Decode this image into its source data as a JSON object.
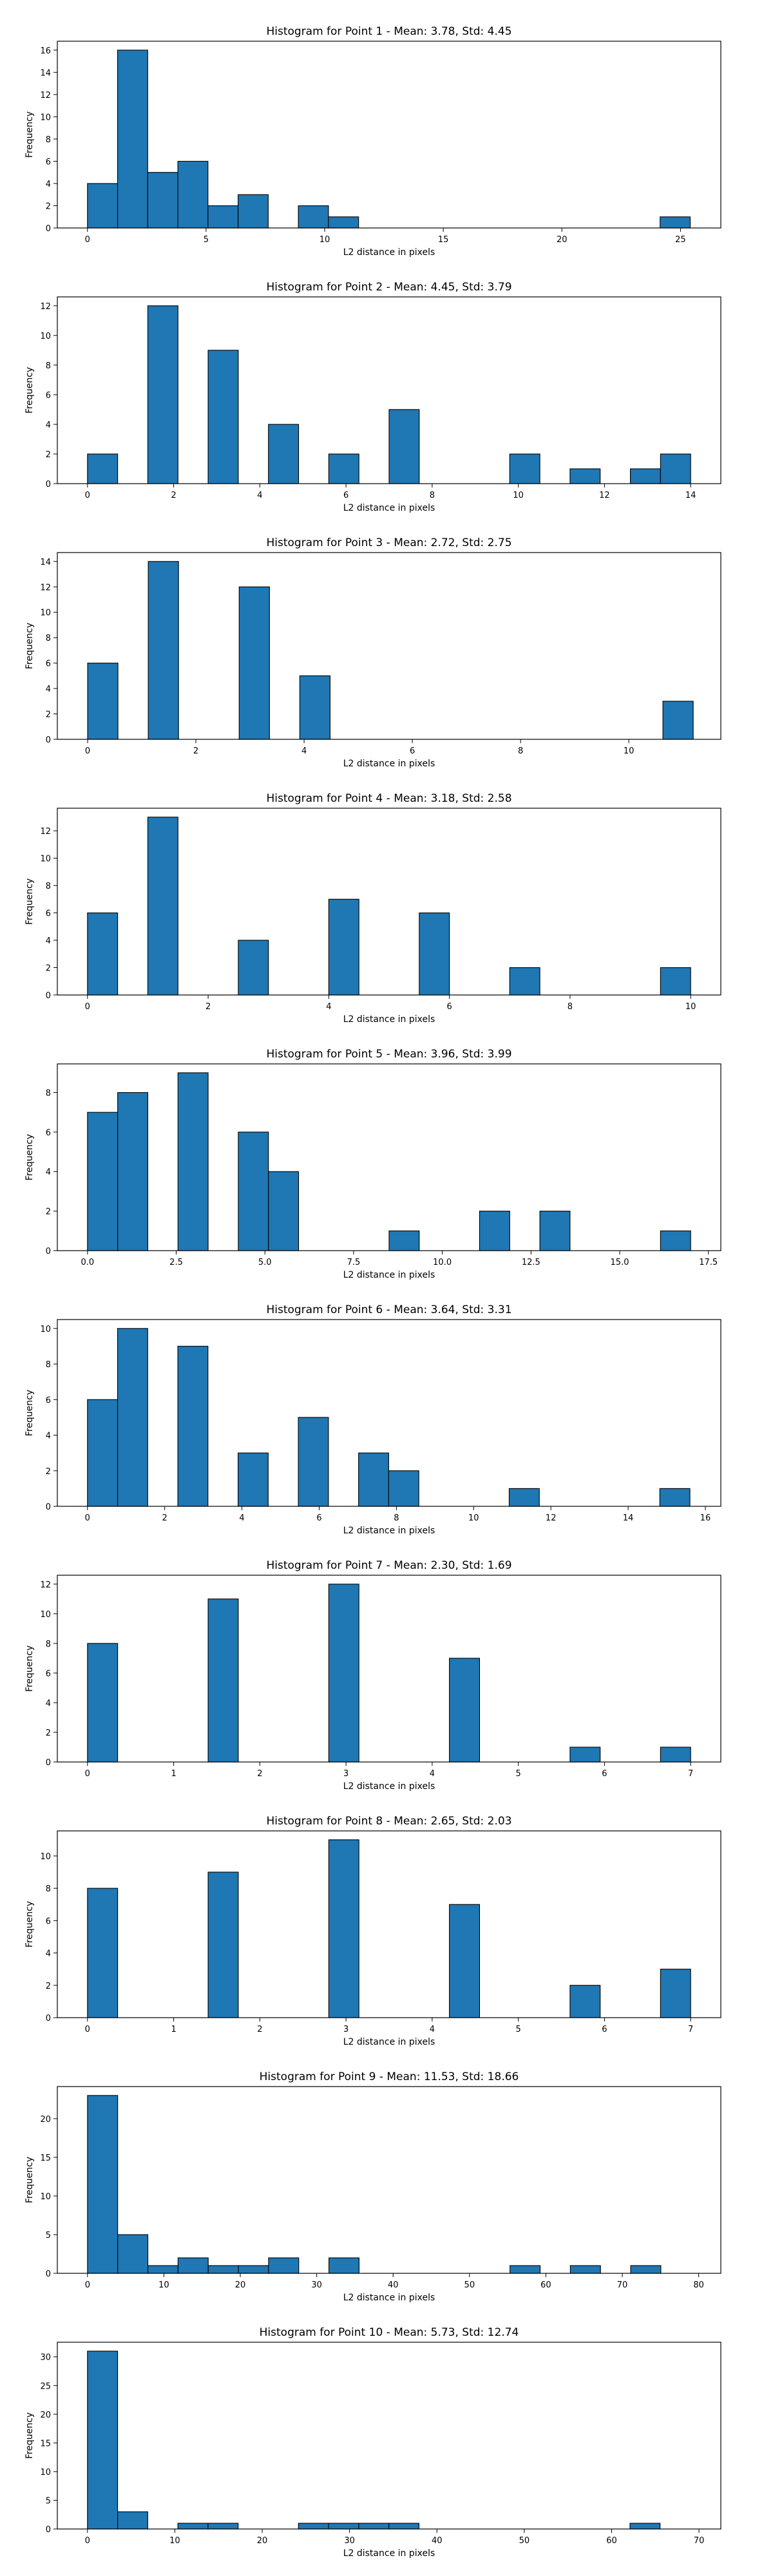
{
  "figure": {
    "bar_color": "#1f77b4",
    "edge_color": "#000000"
  },
  "chart_data": [
    {
      "type": "bar",
      "title": "Histogram for Point 1 - Mean: 3.78, Std: 4.45",
      "xlabel": "L2 distance in pixels",
      "ylabel": "Frequency",
      "xlim": [
        -1.27,
        26.7
      ],
      "ylim": [
        0,
        16.8
      ],
      "xticks": [
        0,
        5,
        10,
        15,
        20,
        25
      ],
      "xtick_labels": [
        "0",
        "5",
        "10",
        "15",
        "20",
        "25"
      ],
      "yticks": [
        0,
        2,
        4,
        6,
        8,
        10,
        12,
        14,
        16
      ],
      "ytick_labels": [
        "0",
        "2",
        "4",
        "6",
        "8",
        "10",
        "12",
        "14",
        "16"
      ],
      "bar_width": 1.27,
      "bins": [
        0,
        1.27,
        2.54,
        3.81,
        5.08,
        6.35,
        8.89,
        10.16,
        24.14
      ],
      "values": [
        4,
        16,
        5,
        6,
        2,
        3,
        2,
        1,
        1
      ]
    },
    {
      "type": "bar",
      "title": "Histogram for Point 2 - Mean: 4.45, Std: 3.79",
      "xlabel": "L2 distance in pixels",
      "ylabel": "Frequency",
      "xlim": [
        -0.7,
        14.7
      ],
      "ylim": [
        0,
        12.6
      ],
      "xticks": [
        0,
        2,
        4,
        6,
        8,
        10,
        12,
        14
      ],
      "xtick_labels": [
        "0",
        "2",
        "4",
        "6",
        "8",
        "10",
        "12",
        "14"
      ],
      "yticks": [
        0,
        2,
        4,
        6,
        8,
        10,
        12
      ],
      "ytick_labels": [
        "0",
        "2",
        "4",
        "6",
        "8",
        "10",
        "12"
      ],
      "bar_width": 0.7,
      "bins": [
        0,
        1.4,
        2.8,
        4.2,
        5.6,
        7.0,
        9.8,
        11.2,
        12.6,
        13.3
      ],
      "values": [
        2,
        12,
        9,
        4,
        2,
        5,
        2,
        1,
        1,
        2
      ]
    },
    {
      "type": "bar",
      "title": "Histogram for Point 3 - Mean: 2.72, Std: 2.75",
      "xlabel": "L2 distance in pixels",
      "ylabel": "Frequency",
      "xlim": [
        -0.56,
        11.7
      ],
      "ylim": [
        0,
        14.7
      ],
      "xticks": [
        0,
        2,
        4,
        6,
        8,
        10
      ],
      "xtick_labels": [
        "0",
        "2",
        "4",
        "6",
        "8",
        "10"
      ],
      "yticks": [
        0,
        2,
        4,
        6,
        8,
        10,
        12,
        14
      ],
      "ytick_labels": [
        "0",
        "2",
        "4",
        "6",
        "8",
        "10",
        "12",
        "14"
      ],
      "bar_width": 0.56,
      "bins": [
        0,
        1.12,
        2.8,
        3.92,
        10.63
      ],
      "values": [
        6,
        14,
        12,
        5,
        3
      ]
    },
    {
      "type": "bar",
      "title": "Histogram for Point 4 - Mean: 3.18, Std: 2.58",
      "xlabel": "L2 distance in pixels",
      "ylabel": "Frequency",
      "xlim": [
        -0.5,
        10.5
      ],
      "ylim": [
        0,
        13.65
      ],
      "xticks": [
        0,
        2,
        4,
        6,
        8,
        10
      ],
      "xtick_labels": [
        "0",
        "2",
        "4",
        "6",
        "8",
        "10"
      ],
      "yticks": [
        0,
        2,
        4,
        6,
        8,
        10,
        12
      ],
      "ytick_labels": [
        "0",
        "2",
        "4",
        "6",
        "8",
        "10",
        "12"
      ],
      "bar_width": 0.5,
      "bins": [
        0,
        1.0,
        2.5,
        4.0,
        5.5,
        7.0,
        9.5
      ],
      "values": [
        6,
        13,
        4,
        7,
        6,
        2,
        2
      ]
    },
    {
      "type": "bar",
      "title": "Histogram for Point 5 - Mean: 3.96, Std: 3.99",
      "xlabel": "L2 distance in pixels",
      "ylabel": "Frequency",
      "xlim": [
        -0.85,
        17.85
      ],
      "ylim": [
        0,
        9.45
      ],
      "xticks": [
        0,
        2.5,
        5,
        7.5,
        10,
        12.5,
        15,
        17.5
      ],
      "xtick_labels": [
        "0.0",
        "2.5",
        "5.0",
        "7.5",
        "10.0",
        "12.5",
        "15.0",
        "17.5"
      ],
      "yticks": [
        0,
        2,
        4,
        6,
        8
      ],
      "ytick_labels": [
        "0",
        "2",
        "4",
        "6",
        "8"
      ],
      "bar_width": 0.85,
      "bins": [
        0,
        0.85,
        2.55,
        4.25,
        5.1,
        8.5,
        11.05,
        12.75,
        16.15
      ],
      "values": [
        7,
        8,
        9,
        6,
        4,
        1,
        2,
        2,
        1
      ]
    },
    {
      "type": "bar",
      "title": "Histogram for Point 6 - Mean: 3.64, Std: 3.31",
      "xlabel": "L2 distance in pixels",
      "ylabel": "Frequency",
      "xlim": [
        -0.78,
        16.4
      ],
      "ylim": [
        0,
        10.5
      ],
      "xticks": [
        0,
        2,
        4,
        6,
        8,
        10,
        12,
        14,
        16
      ],
      "xtick_labels": [
        "0",
        "2",
        "4",
        "6",
        "8",
        "10",
        "12",
        "14",
        "16"
      ],
      "yticks": [
        0,
        2,
        4,
        6,
        8,
        10
      ],
      "ytick_labels": [
        "0",
        "2",
        "4",
        "6",
        "8",
        "10"
      ],
      "bar_width": 0.78,
      "bins": [
        0,
        0.78,
        2.34,
        3.9,
        5.46,
        7.02,
        7.8,
        10.92,
        14.82
      ],
      "values": [
        6,
        10,
        9,
        3,
        5,
        3,
        2,
        1,
        1
      ]
    },
    {
      "type": "bar",
      "title": "Histogram for Point 7 - Mean: 2.30, Std: 1.69",
      "xlabel": "L2 distance in pixels",
      "ylabel": "Frequency",
      "xlim": [
        -0.35,
        7.35
      ],
      "ylim": [
        0,
        12.6
      ],
      "xticks": [
        0,
        1,
        2,
        3,
        4,
        5,
        6,
        7
      ],
      "xtick_labels": [
        "0",
        "1",
        "2",
        "3",
        "4",
        "5",
        "6",
        "7"
      ],
      "yticks": [
        0,
        2,
        4,
        6,
        8,
        10,
        12
      ],
      "ytick_labels": [
        "0",
        "2",
        "4",
        "6",
        "8",
        "10",
        "12"
      ],
      "bar_width": 0.35,
      "bins": [
        0,
        1.4,
        2.8,
        4.2,
        5.6,
        6.65
      ],
      "values": [
        8,
        11,
        12,
        7,
        1,
        1
      ]
    },
    {
      "type": "bar",
      "title": "Histogram for Point 8 - Mean: 2.65, Std: 2.03",
      "xlabel": "L2 distance in pixels",
      "ylabel": "Frequency",
      "xlim": [
        -0.35,
        7.35
      ],
      "ylim": [
        0,
        11.55
      ],
      "xticks": [
        0,
        1,
        2,
        3,
        4,
        5,
        6,
        7
      ],
      "xtick_labels": [
        "0",
        "1",
        "2",
        "3",
        "4",
        "5",
        "6",
        "7"
      ],
      "yticks": [
        0,
        2,
        4,
        6,
        8,
        10
      ],
      "ytick_labels": [
        "0",
        "2",
        "4",
        "6",
        "8",
        "10"
      ],
      "bar_width": 0.35,
      "bins": [
        0,
        1.4,
        2.8,
        4.2,
        5.6,
        6.65
      ],
      "values": [
        8,
        9,
        11,
        7,
        2,
        3
      ]
    },
    {
      "type": "bar",
      "title": "Histogram for Point 9 - Mean: 11.53, Std: 18.66",
      "xlabel": "L2 distance in pixels",
      "ylabel": "Frequency",
      "xlim": [
        -3.95,
        82.9
      ],
      "ylim": [
        0,
        24.15
      ],
      "xticks": [
        0,
        10,
        20,
        30,
        40,
        50,
        60,
        70,
        80
      ],
      "xtick_labels": [
        "0",
        "10",
        "20",
        "30",
        "40",
        "50",
        "60",
        "70",
        "80"
      ],
      "yticks": [
        0,
        5,
        10,
        15,
        20
      ],
      "ytick_labels": [
        "0",
        "5",
        "10",
        "15",
        "20"
      ],
      "bar_width": 3.95,
      "bins": [
        0,
        3.95,
        7.9,
        11.85,
        15.8,
        19.75,
        23.7,
        31.6,
        55.3,
        63.2,
        71.1
      ],
      "values": [
        23,
        5,
        1,
        2,
        1,
        1,
        2,
        2,
        1,
        1,
        1
      ]
    },
    {
      "type": "bar",
      "title": "Histogram for Point 10 - Mean: 5.73, Std: 12.74",
      "xlabel": "L2 distance in pixels",
      "ylabel": "Frequency",
      "xlim": [
        -3.45,
        72.5
      ],
      "ylim": [
        0,
        32.55
      ],
      "xticks": [
        0,
        10,
        20,
        30,
        40,
        50,
        60,
        70
      ],
      "xtick_labels": [
        "0",
        "10",
        "20",
        "30",
        "40",
        "50",
        "60",
        "70"
      ],
      "yticks": [
        0,
        5,
        10,
        15,
        20,
        25,
        30
      ],
      "ytick_labels": [
        "0",
        "5",
        "10",
        "15",
        "20",
        "25",
        "30"
      ],
      "bar_width": 3.45,
      "bins": [
        0,
        3.45,
        10.35,
        13.8,
        24.15,
        27.6,
        31.05,
        34.5,
        62.1
      ],
      "values": [
        31,
        3,
        1,
        1,
        1,
        1,
        1,
        1,
        1
      ]
    }
  ]
}
